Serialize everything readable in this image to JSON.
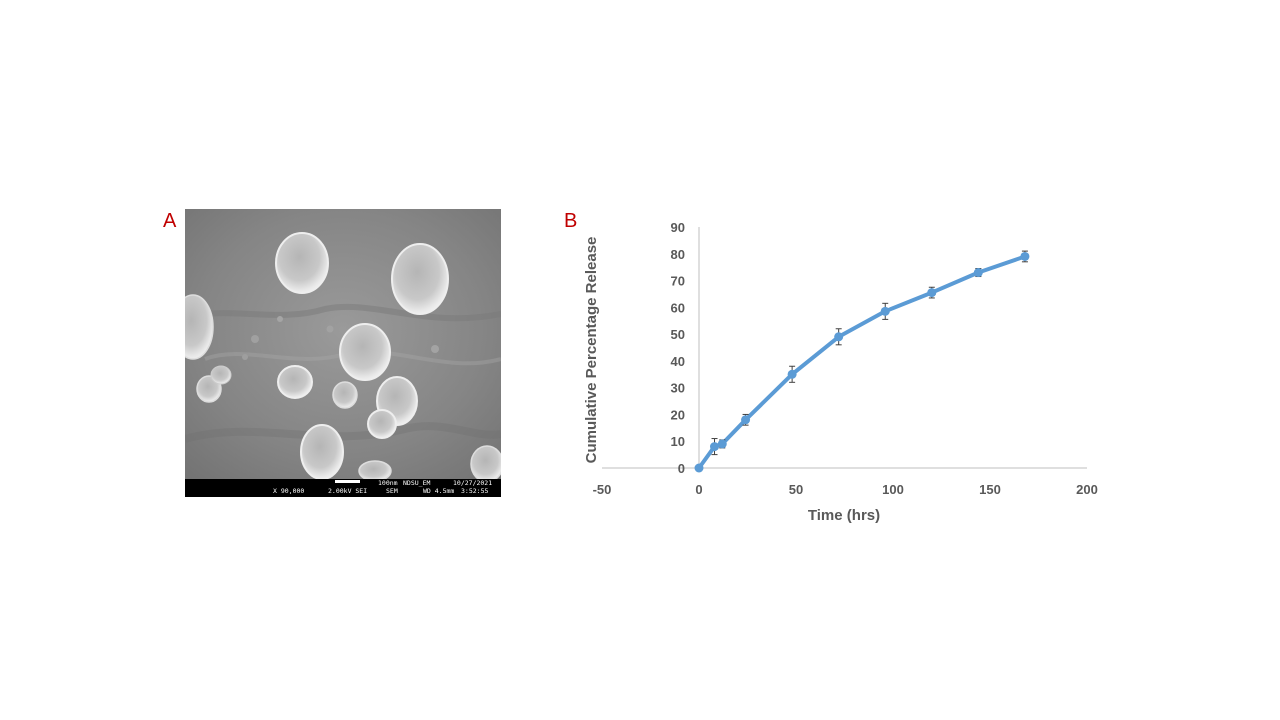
{
  "panel_a": {
    "label": "A",
    "micrograph": {
      "scale_text": "100nm",
      "lab": "NDSU_EM",
      "date": "10/27/2021",
      "magnification": "X 90,000",
      "voltage": "2.00kV SEI",
      "mode": "SEM",
      "working_distance": "WD 4.5mm",
      "time": "3:52:55"
    }
  },
  "panel_b": {
    "label": "B"
  },
  "colors": {
    "series": "#5b9bd5",
    "panel_label": "#c00000",
    "axis_text": "#595959"
  },
  "chart_data": {
    "type": "line",
    "xlabel": "Time (hrs)",
    "ylabel": "Cumulative Percentage Release",
    "xlim": [
      -50,
      200
    ],
    "ylim": [
      0,
      90
    ],
    "x_ticks": [
      -50,
      0,
      50,
      100,
      150,
      200
    ],
    "y_ticks": [
      0,
      10,
      20,
      30,
      40,
      50,
      60,
      70,
      80,
      90
    ],
    "grid": false,
    "legend": "none",
    "series": [
      {
        "x": [
          0,
          8,
          12,
          24,
          48,
          72,
          96,
          120,
          144,
          168
        ],
        "y": [
          0,
          8,
          9,
          18,
          35,
          49,
          58.5,
          65.5,
          73,
          79
        ],
        "error": [
          0,
          3,
          1.5,
          2,
          3,
          3,
          3,
          2,
          1.5,
          2
        ]
      }
    ]
  }
}
